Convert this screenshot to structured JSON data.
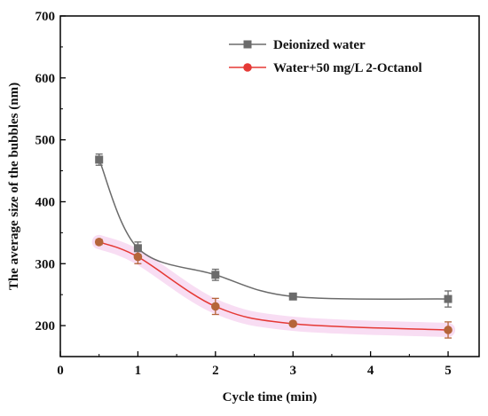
{
  "chart_data": {
    "type": "scatter",
    "xlabel": "Cycle time (min)",
    "ylabel": "The average size of the bubbles (nm)",
    "xlim": [
      0,
      5.4
    ],
    "ylim": [
      150,
      700
    ],
    "xticks": [
      0,
      1,
      2,
      3,
      4,
      5
    ],
    "yticks": [
      200,
      300,
      400,
      500,
      600,
      700
    ],
    "grid": false,
    "legend_position": "top-right",
    "series": [
      {
        "name": "Deionized water",
        "color": "#6b6b6b",
        "marker": "square",
        "x": [
          0.5,
          1,
          2,
          3,
          5
        ],
        "y": [
          468,
          325,
          282,
          247,
          243
        ],
        "error": [
          9,
          10,
          9,
          4,
          13
        ],
        "fit_curve": true
      },
      {
        "name": "Water+50 mg/L 2-Octanol",
        "color": "#e53935",
        "marker_color": "#b5653a",
        "marker": "circle",
        "x": [
          0.5,
          1,
          2,
          3,
          5
        ],
        "y": [
          335,
          311,
          231,
          203,
          193
        ],
        "error": [
          4,
          11,
          13,
          3,
          13
        ],
        "fit_curve": true,
        "halo_color": "#f7d9f2"
      }
    ]
  }
}
